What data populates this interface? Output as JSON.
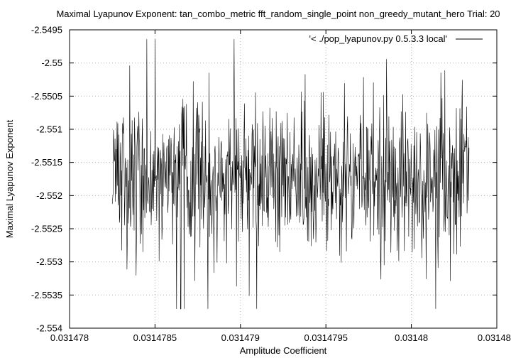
{
  "chart_data": {
    "type": "line",
    "title": "Maximal Lyapunov Exponent: tan_combo_metric fft_random_single_point non_greedy_mutant_hero Trial: 20",
    "xlabel": "Amplitude Coefficient",
    "ylabel": "Maximal Lyapunov Exponent",
    "xlim": [
      0.031478,
      0.03148
    ],
    "ylim": [
      -2.554,
      -2.5495
    ],
    "x_ticks": [
      "0.031478",
      "0.0314785",
      "0.031479",
      "0.0314795",
      "0.03148",
      "0.031480"
    ],
    "y_ticks": [
      "-2.5495",
      "-2.55",
      "-2.5505",
      "-2.551",
      "-2.5515",
      "-2.552",
      "-2.5525",
      "-2.553",
      "-2.5535",
      "-2.554"
    ],
    "grid": true,
    "legend": {
      "position": "top-right",
      "entries": [
        "'< ./pop_lyapunov.py 0.5.3.3 local'"
      ]
    },
    "series": [
      {
        "name": "'< ./pop_lyapunov.py 0.5.3.3 local'",
        "color": "#000000",
        "x_start": 0.0314782,
        "x_end": 0.03147987,
        "points": 900,
        "mean": -2.55175,
        "typical_low": -2.5525,
        "typical_high": -2.5508,
        "min": -2.55371,
        "max": -2.54964
      }
    ]
  }
}
